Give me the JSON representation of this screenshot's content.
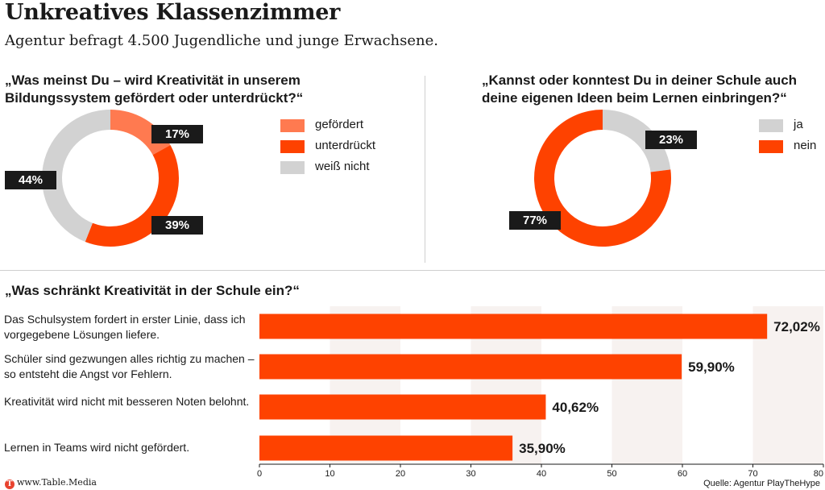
{
  "header": {
    "title": "Unkreatives Klassenzimmer",
    "subtitle": "Agentur befragt 4.500 Jugendliche und junge Erwachsene."
  },
  "colors": {
    "dark_orange": "#fe4200",
    "light_orange": "#ff7a50",
    "grey": "#d2d2d2",
    "badge": "#1a1a1a"
  },
  "chart_data": [
    {
      "type": "pie",
      "title": "„Was meinst Du – wird Kreativität in unserem Bildungssystem gefördert oder unterdrückt?“",
      "categories": [
        "gefördert",
        "unterdrückt",
        "weiß nicht"
      ],
      "values": [
        17,
        39,
        44
      ],
      "labels": [
        "17%",
        "39%",
        "44%"
      ],
      "colors": [
        "#ff7a50",
        "#fe4200",
        "#d2d2d2"
      ],
      "legend": "right"
    },
    {
      "type": "pie",
      "title": "„Kannst oder konntest Du in deiner Schule auch deine eigenen Ideen beim Lernen einbringen?“",
      "categories": [
        "ja",
        "nein"
      ],
      "values": [
        23,
        77
      ],
      "labels": [
        "23%",
        "77%"
      ],
      "colors": [
        "#d2d2d2",
        "#fe4200"
      ],
      "legend": "right"
    },
    {
      "type": "bar",
      "orientation": "horizontal",
      "title": "„Was schränkt Kreativität in der Schule ein?“",
      "categories": [
        "Das Schulsystem fordert in erster Linie, dass ich vorgegebene Lösungen liefere.",
        "Schüler sind gezwungen alles richtig zu machen – so entsteht die Angst vor Fehlern.",
        "Kreativität wird nicht mit besseren Noten belohnt.",
        "Lernen in Teams wird nicht gefördert."
      ],
      "values": [
        72.02,
        59.9,
        40.62,
        35.9
      ],
      "value_labels": [
        "72,02%",
        "59,90%",
        "40,62%",
        "35,90%"
      ],
      "xlim": [
        0,
        80
      ],
      "xticks": [
        "0",
        "10",
        "20",
        "30",
        "40",
        "50",
        "60",
        "70",
        "80"
      ],
      "color": "#fe4200"
    }
  ],
  "footer": {
    "logo_letter": "T",
    "site": "www.Table.Media",
    "source": "Quelle: Agentur PlayTheHype"
  }
}
